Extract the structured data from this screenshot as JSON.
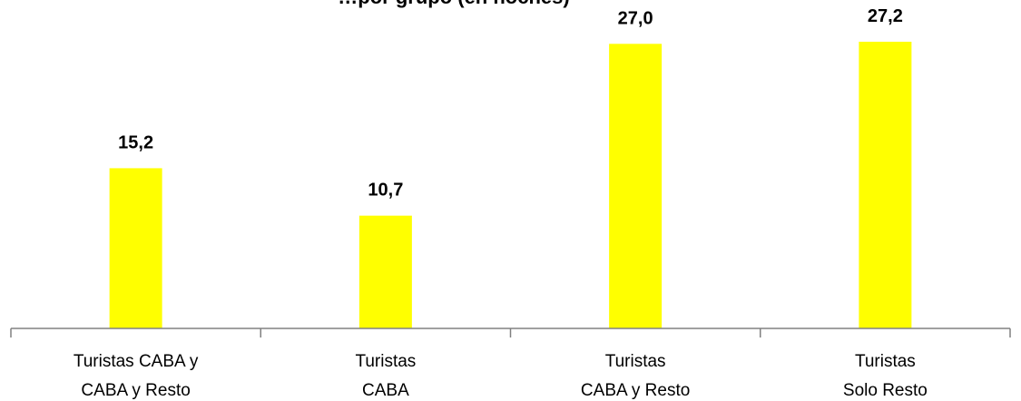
{
  "chart_data": {
    "type": "bar",
    "title": "…por grupo (en noches)",
    "categories": [
      [
        "Turistas CABA y",
        "CABA y Resto"
      ],
      [
        "Turistas",
        "CABA"
      ],
      [
        "Turistas",
        "CABA y Resto"
      ],
      [
        "Turistas",
        "Solo Resto"
      ]
    ],
    "values": [
      15.2,
      10.7,
      27.0,
      27.2
    ],
    "data_labels": [
      "15,2",
      "10,7",
      "27,0",
      "27,2"
    ],
    "ylim": [
      0,
      27.2
    ],
    "grid": false,
    "legend": "none",
    "bar_color": "#FFFF00",
    "axis_color": "#808080"
  }
}
